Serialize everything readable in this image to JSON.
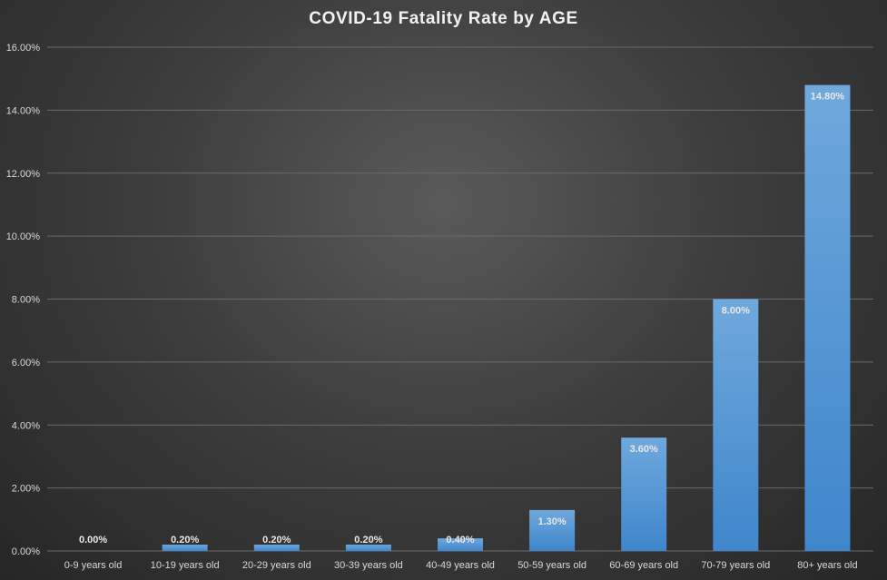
{
  "chart_data": {
    "type": "bar",
    "title": "COVID-19  Fatality  Rate  by  AGE",
    "categories": [
      "0-9 years old",
      "10-19 years old",
      "20-29 years old",
      "30-39 years old",
      "40-49 years old",
      "50-59 years old",
      "60-69 years old",
      "70-79 years old",
      "80+ years old"
    ],
    "values": [
      0.0,
      0.2,
      0.2,
      0.2,
      0.4,
      1.3,
      3.6,
      8.0,
      14.8
    ],
    "data_labels": [
      "0.00%",
      "0.20%",
      "0.20%",
      "0.20%",
      "0.40%",
      "1.30%",
      "3.60%",
      "8.00%",
      "14.80%"
    ],
    "y_ticks": [
      "0.00%",
      "2.00%",
      "4.00%",
      "6.00%",
      "8.00%",
      "10.00%",
      "12.00%",
      "14.00%",
      "16.00%"
    ],
    "ylim": [
      0,
      16
    ],
    "xlabel": "",
    "ylabel": "",
    "grid": true,
    "bar_color_top": "#6fa8dc",
    "bar_color_bottom": "#3f86cc"
  }
}
